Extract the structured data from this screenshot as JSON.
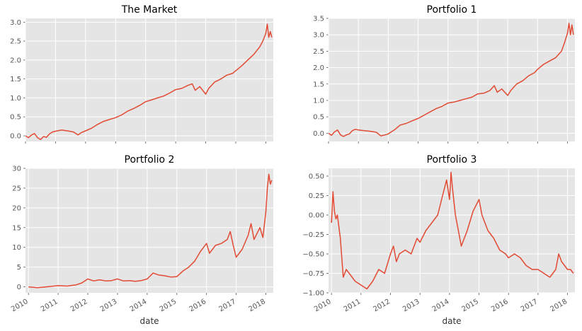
{
  "chart_data": [
    {
      "type": "line",
      "title": "The Market",
      "xlabel": "",
      "ylabel": "",
      "xlim": [
        2010.0,
        2018.25
      ],
      "ylim": [
        -0.15,
        3.1
      ],
      "yticks": [
        "0.0",
        "0.5",
        "1.0",
        "1.5",
        "2.0",
        "2.5",
        "3.0"
      ],
      "xticks": [],
      "grid": true,
      "color": "#e24a33",
      "series": [
        {
          "x": [
            2010.0,
            2010.1,
            2010.2,
            2010.3,
            2010.4,
            2010.5,
            2010.6,
            2010.7,
            2010.8,
            2010.9,
            2011.0,
            2011.2,
            2011.4,
            2011.6,
            2011.75,
            2011.85,
            2012.0,
            2012.2,
            2012.4,
            2012.6,
            2012.8,
            2013.0,
            2013.2,
            2013.4,
            2013.6,
            2013.8,
            2014.0,
            2014.2,
            2014.4,
            2014.6,
            2014.8,
            2015.0,
            2015.2,
            2015.4,
            2015.55,
            2015.65,
            2015.8,
            2016.0,
            2016.1,
            2016.3,
            2016.5,
            2016.7,
            2016.9,
            2017.0,
            2017.2,
            2017.4,
            2017.6,
            2017.8,
            2017.9,
            2018.0,
            2018.05,
            2018.1,
            2018.15,
            2018.2
          ],
          "values": [
            0.0,
            -0.05,
            0.02,
            0.06,
            -0.05,
            -0.1,
            -0.02,
            -0.04,
            0.05,
            0.1,
            0.12,
            0.15,
            0.13,
            0.1,
            0.02,
            0.08,
            0.13,
            0.2,
            0.3,
            0.38,
            0.43,
            0.48,
            0.55,
            0.65,
            0.72,
            0.8,
            0.9,
            0.95,
            1.0,
            1.05,
            1.13,
            1.22,
            1.25,
            1.33,
            1.37,
            1.2,
            1.3,
            1.1,
            1.25,
            1.42,
            1.5,
            1.6,
            1.65,
            1.72,
            1.85,
            2.0,
            2.15,
            2.35,
            2.5,
            2.7,
            2.95,
            2.6,
            2.75,
            2.6
          ]
        }
      ]
    },
    {
      "type": "line",
      "title": "Portfolio 1",
      "xlabel": "",
      "ylabel": "",
      "xlim": [
        2010.0,
        2018.25
      ],
      "ylim": [
        -0.25,
        3.5
      ],
      "yticks": [
        "0.0",
        "0.5",
        "1.0",
        "1.5",
        "2.0",
        "2.5",
        "3.0",
        "3.5"
      ],
      "xticks": [],
      "grid": true,
      "color": "#e24a33",
      "series": [
        {
          "x": [
            2010.0,
            2010.1,
            2010.2,
            2010.3,
            2010.4,
            2010.5,
            2010.6,
            2010.7,
            2010.8,
            2010.9,
            2011.0,
            2011.2,
            2011.4,
            2011.6,
            2011.75,
            2011.9,
            2012.0,
            2012.2,
            2012.4,
            2012.6,
            2012.8,
            2013.0,
            2013.2,
            2013.4,
            2013.6,
            2013.8,
            2014.0,
            2014.2,
            2014.4,
            2014.6,
            2014.8,
            2015.0,
            2015.2,
            2015.4,
            2015.55,
            2015.65,
            2015.8,
            2016.0,
            2016.1,
            2016.3,
            2016.5,
            2016.7,
            2016.9,
            2017.0,
            2017.2,
            2017.4,
            2017.6,
            2017.8,
            2017.9,
            2018.0,
            2018.05,
            2018.1,
            2018.15,
            2018.2
          ],
          "values": [
            0.0,
            -0.06,
            0.04,
            0.1,
            -0.05,
            -0.1,
            -0.05,
            -0.02,
            0.08,
            0.12,
            0.1,
            0.08,
            0.06,
            0.03,
            -0.08,
            -0.05,
            -0.02,
            0.1,
            0.25,
            0.3,
            0.38,
            0.45,
            0.55,
            0.65,
            0.75,
            0.82,
            0.92,
            0.95,
            1.0,
            1.05,
            1.1,
            1.2,
            1.22,
            1.3,
            1.45,
            1.25,
            1.35,
            1.15,
            1.3,
            1.5,
            1.6,
            1.75,
            1.85,
            1.95,
            2.1,
            2.2,
            2.3,
            2.5,
            2.75,
            3.05,
            3.35,
            3.0,
            3.3,
            3.0
          ]
        }
      ]
    },
    {
      "type": "line",
      "title": "Portfolio 2",
      "xlabel": "date",
      "ylabel": "",
      "xlim": [
        2009.9,
        2018.25
      ],
      "ylim": [
        -1.5,
        30
      ],
      "yticks": [
        "0",
        "5",
        "10",
        "15",
        "20",
        "25",
        "30"
      ],
      "xticks": [
        "2010",
        "2011",
        "2012",
        "2013",
        "2014",
        "2015",
        "2016",
        "2017",
        "2018"
      ],
      "grid": true,
      "color": "#e24a33",
      "series": [
        {
          "x": [
            2010.0,
            2010.3,
            2010.6,
            2011.0,
            2011.3,
            2011.6,
            2011.8,
            2012.0,
            2012.2,
            2012.4,
            2012.6,
            2012.8,
            2013.0,
            2013.2,
            2013.4,
            2013.6,
            2013.8,
            2014.0,
            2014.2,
            2014.4,
            2014.6,
            2014.8,
            2015.0,
            2015.2,
            2015.4,
            2015.6,
            2015.8,
            2016.0,
            2016.1,
            2016.3,
            2016.5,
            2016.7,
            2016.8,
            2016.9,
            2017.0,
            2017.2,
            2017.4,
            2017.5,
            2017.6,
            2017.8,
            2017.9,
            2018.0,
            2018.05,
            2018.1,
            2018.15,
            2018.2
          ],
          "values": [
            0.0,
            -0.2,
            0.0,
            0.3,
            0.2,
            0.5,
            1.0,
            2.0,
            1.5,
            1.8,
            1.5,
            1.6,
            2.0,
            1.5,
            1.6,
            1.4,
            1.6,
            2.0,
            3.5,
            3.0,
            2.8,
            2.5,
            2.6,
            4.0,
            5.0,
            6.5,
            9.0,
            11.0,
            8.5,
            10.5,
            11.0,
            12.0,
            14.0,
            10.5,
            7.5,
            9.5,
            13.0,
            16.0,
            12.0,
            15.0,
            12.5,
            19.0,
            25.0,
            28.5,
            26.0,
            27.0
          ]
        }
      ]
    },
    {
      "type": "line",
      "title": "Portfolio 3",
      "xlabel": "date",
      "ylabel": "",
      "xlim": [
        2009.9,
        2018.25
      ],
      "ylim": [
        -1.0,
        0.6
      ],
      "yticks": [
        "0.50",
        "0.25",
        "0.00",
        "−0.25",
        "−0.50",
        "−0.75",
        "−1.00"
      ],
      "xticks": [
        "2010",
        "2011",
        "2012",
        "2013",
        "2014",
        "2015",
        "2016",
        "2017",
        "2018"
      ],
      "grid": true,
      "color": "#e24a33",
      "series": [
        {
          "x": [
            2010.0,
            2010.05,
            2010.1,
            2010.15,
            2010.2,
            2010.3,
            2010.4,
            2010.5,
            2010.6,
            2010.8,
            2011.0,
            2011.2,
            2011.4,
            2011.6,
            2011.8,
            2012.0,
            2012.1,
            2012.2,
            2012.3,
            2012.5,
            2012.7,
            2012.9,
            2013.0,
            2013.2,
            2013.4,
            2013.6,
            2013.8,
            2013.9,
            2014.0,
            2014.05,
            2014.1,
            2014.2,
            2014.3,
            2014.4,
            2014.6,
            2014.8,
            2015.0,
            2015.1,
            2015.3,
            2015.5,
            2015.7,
            2015.9,
            2016.0,
            2016.2,
            2016.4,
            2016.6,
            2016.8,
            2017.0,
            2017.2,
            2017.4,
            2017.6,
            2017.7,
            2017.8,
            2018.0,
            2018.1,
            2018.2
          ],
          "values": [
            -0.1,
            0.3,
            0.05,
            -0.05,
            0.0,
            -0.3,
            -0.8,
            -0.7,
            -0.75,
            -0.85,
            -0.9,
            -0.95,
            -0.85,
            -0.7,
            -0.75,
            -0.5,
            -0.4,
            -0.6,
            -0.5,
            -0.45,
            -0.5,
            -0.3,
            -0.35,
            -0.2,
            -0.1,
            0.0,
            0.3,
            0.45,
            0.2,
            0.55,
            0.35,
            0.0,
            -0.2,
            -0.4,
            -0.2,
            0.05,
            0.2,
            0.0,
            -0.2,
            -0.3,
            -0.45,
            -0.5,
            -0.55,
            -0.5,
            -0.55,
            -0.65,
            -0.7,
            -0.7,
            -0.75,
            -0.8,
            -0.7,
            -0.5,
            -0.6,
            -0.7,
            -0.7,
            -0.75
          ]
        }
      ]
    }
  ]
}
